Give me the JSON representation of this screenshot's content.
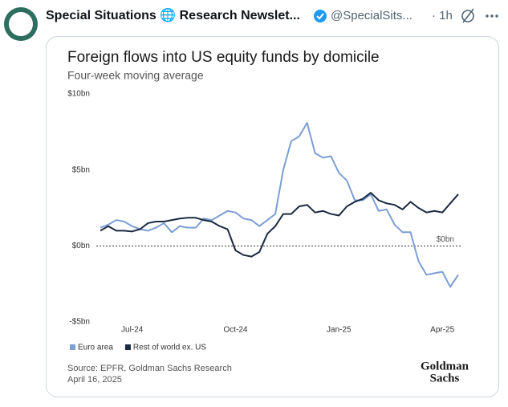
{
  "tweet": {
    "name": "Special Situations 🌐 Research Newslet...",
    "handle": "@SpecialSits...",
    "time": "· 1h"
  },
  "chart_data": {
    "type": "line",
    "title": "Foreign flows into US equity funds by domicile",
    "subtitle": "Four-week moving average",
    "categories": [
      null,
      null,
      null,
      null,
      "Jul-24",
      null,
      null,
      null,
      null,
      null,
      null,
      null,
      null,
      null,
      null,
      null,
      null,
      "Oct-24",
      null,
      null,
      null,
      null,
      null,
      null,
      null,
      null,
      null,
      null,
      null,
      null,
      "Jan-25",
      null,
      null,
      null,
      null,
      null,
      null,
      null,
      null,
      null,
      null,
      null,
      null,
      "Apr-25",
      null,
      null
    ],
    "series": [
      {
        "name": "Euro area",
        "color": "#7b9fd4",
        "values": [
          1.2,
          1.4,
          1.7,
          1.6,
          1.3,
          1.1,
          1.0,
          1.2,
          1.5,
          0.9,
          1.3,
          1.2,
          1.2,
          1.8,
          1.7,
          2.0,
          2.3,
          2.2,
          1.8,
          1.7,
          1.3,
          1.7,
          2.1,
          5.0,
          6.9,
          7.2,
          8.1,
          6.1,
          5.8,
          5.9,
          4.8,
          4.3,
          3.0,
          3.0,
          3.4,
          2.3,
          2.4,
          1.4,
          0.9,
          0.9,
          -1.0,
          -1.9,
          -1.8,
          -1.7,
          -2.7,
          -1.9
        ]
      },
      {
        "name": "Rest of world ex. US",
        "color": "#1b2a41",
        "values": [
          1.0,
          1.3,
          1.0,
          1.0,
          0.95,
          1.1,
          1.5,
          1.6,
          1.6,
          1.7,
          1.8,
          1.85,
          1.85,
          1.7,
          1.6,
          1.3,
          1.1,
          -0.3,
          -0.6,
          -0.7,
          -0.4,
          0.8,
          1.3,
          2.1,
          2.1,
          2.6,
          2.7,
          2.2,
          2.3,
          2.1,
          2.0,
          2.6,
          2.9,
          3.1,
          3.5,
          3.0,
          2.8,
          2.7,
          2.4,
          2.9,
          2.5,
          2.2,
          2.3,
          2.2,
          2.8,
          3.4
        ]
      }
    ],
    "ylim": [
      -5,
      10
    ],
    "yticks": [
      {
        "value": -5,
        "label": "-$5bn"
      },
      {
        "value": 0,
        "label": "$0bn"
      },
      {
        "value": 5,
        "label": "$5bn"
      },
      {
        "value": 10,
        "label": "$10bn"
      }
    ],
    "zero_label": "$0bn",
    "grid": false,
    "source": "Source: EPFR, Goldman Sachs Research",
    "date": "April 16, 2025",
    "logo": [
      "Goldman",
      "Sachs"
    ]
  }
}
